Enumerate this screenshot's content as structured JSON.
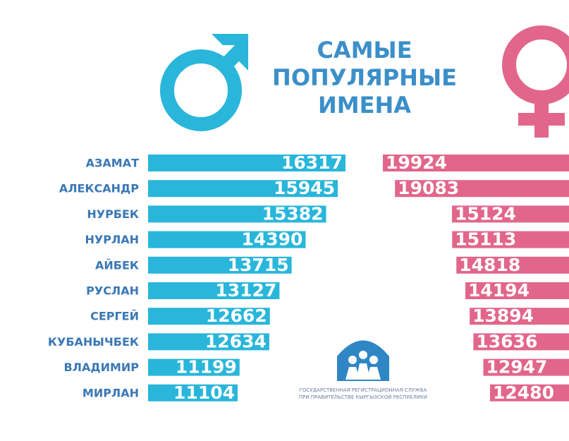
{
  "header": {
    "title_lines": [
      "САМЫЕ",
      "ПОПУЛЯРНЫЕ",
      "ИМЕНА"
    ]
  },
  "chart_data": [
    {
      "type": "bar",
      "orientation": "horizontal",
      "color": "#29b6da",
      "categories": [
        "АЗАМАТ",
        "АЛЕКСАНДР",
        "НУРБЕК",
        "НУРЛАН",
        "АЙБЕК",
        "РУСЛАН",
        "СЕРГЕЙ",
        "КУБАНЫЧБЕК",
        "ВЛАДИМИР",
        "МИРЛАН"
      ],
      "values": [
        16317,
        15945,
        15382,
        14390,
        13715,
        13127,
        12662,
        12634,
        11199,
        11104
      ]
    },
    {
      "type": "bar",
      "orientation": "horizontal",
      "color": "#e2668c",
      "categories": [
        null,
        null,
        null,
        null,
        null,
        null,
        null,
        null,
        null,
        null
      ],
      "values": [
        19924,
        19083,
        15124,
        15113,
        14818,
        14194,
        13894,
        13636,
        12947,
        12480
      ]
    }
  ],
  "logo": {
    "lines": [
      "ГОСУДАРСТВЕННАЯ РЕГИСТРАЦИОННАЯ СЛУЖБА",
      "ПРИ ПРАВИТЕЛЬСТВЕ КЫРГЫЗСКОЙ РЕСПУБЛИКИ"
    ]
  }
}
